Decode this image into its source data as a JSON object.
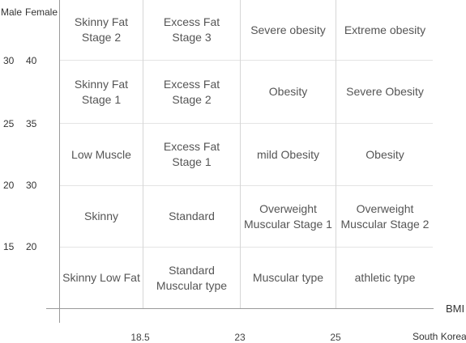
{
  "y_axis": {
    "male_title": "Male",
    "female_title": "Female",
    "ticks": [
      {
        "male": "30",
        "female": "40"
      },
      {
        "male": "25",
        "female": "35"
      },
      {
        "male": "20",
        "female": "30"
      },
      {
        "male": "15",
        "female": "20"
      }
    ]
  },
  "x_axis": {
    "title": "BMI",
    "ticks": [
      "18.5",
      "23",
      "25"
    ],
    "country_note": "South Korea"
  },
  "grid": {
    "rows": [
      [
        "Skinny Fat\nStage 2",
        "Excess Fat\nStage 3",
        "Severe obesity",
        "Extreme obesity"
      ],
      [
        "Skinny Fat\nStage 1",
        "Excess Fat\nStage 2",
        "Obesity",
        "Severe Obesity"
      ],
      [
        "Low Muscle",
        "Excess Fat\nStage 1",
        "mild Obesity",
        "Obesity"
      ],
      [
        "Skinny",
        "Standard",
        "Overweight\nMuscular Stage 1",
        "Overweight\nMuscular Stage 2"
      ],
      [
        "Skinny Low Fat",
        "Standard\nMuscular type",
        "Muscular type",
        "athletic type"
      ]
    ]
  }
}
